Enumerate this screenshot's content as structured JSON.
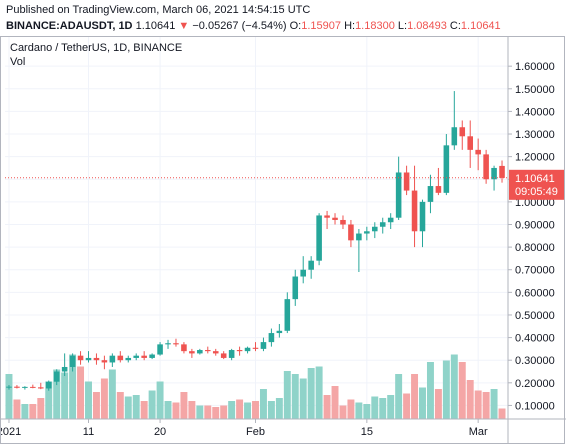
{
  "header": {
    "published": "Published on TradingView.com, March 06, 2021 14:54:15 UTC",
    "symbol": "BINANCE:ADAUSDT, 1D",
    "last": "1.10641",
    "change_arrow": "▼",
    "change": "−0.05267 (−4.54%)",
    "o_label": "O:",
    "o_value": "1.15907",
    "h_label": "H:",
    "h_value": "1.18300",
    "l_label": "L:",
    "l_value": "1.08493",
    "c_label": "C:",
    "c_value": "1.10641"
  },
  "legend": {
    "series": "Cardano / TetherUS, 1D, BINANCE",
    "volume": "Vol"
  },
  "colors": {
    "up": "#26a69a",
    "down": "#ef5350",
    "vol_up": "#8fd3c9",
    "vol_down": "#f4a6a6",
    "grid": "#f0f3fa",
    "axis_text": "#131722",
    "price_line": "#ef5350"
  },
  "price_label": {
    "value": "1.10641",
    "countdown": "09:05:49"
  },
  "chart_data": {
    "type": "candlestick",
    "y_ticks": [
      "1.60000",
      "1.50000",
      "1.40000",
      "1.30000",
      "1.20000",
      "1.10000",
      "1.00000",
      "0.90000",
      "0.80000",
      "0.70000",
      "0.60000",
      "0.50000",
      "0.40000",
      "0.30000",
      "0.20000",
      "0.10000"
    ],
    "ylim": [
      0.04,
      1.645
    ],
    "x_ticks": [
      {
        "label": "2021",
        "index": 0
      },
      {
        "label": "11",
        "index": 10
      },
      {
        "label": "20",
        "index": 19
      },
      {
        "label": "Feb",
        "index": 31
      },
      {
        "label": "15",
        "index": 45
      },
      {
        "label": "Mar",
        "index": 59
      }
    ],
    "last_price": 1.10641,
    "candles": [
      [
        0.181,
        0.19,
        0.17,
        0.183,
        0.3
      ],
      [
        0.183,
        0.19,
        0.175,
        0.178,
        0.13
      ],
      [
        0.178,
        0.185,
        0.17,
        0.182,
        0.1
      ],
      [
        0.182,
        0.192,
        0.176,
        0.18,
        0.1
      ],
      [
        0.18,
        0.2,
        0.172,
        0.175,
        0.14
      ],
      [
        0.175,
        0.21,
        0.165,
        0.205,
        0.25
      ],
      [
        0.205,
        0.26,
        0.19,
        0.25,
        0.33
      ],
      [
        0.25,
        0.33,
        0.23,
        0.27,
        0.31
      ],
      [
        0.27,
        0.33,
        0.25,
        0.32,
        0.43
      ],
      [
        0.32,
        0.34,
        0.28,
        0.3,
        0.35
      ],
      [
        0.3,
        0.34,
        0.29,
        0.31,
        0.25
      ],
      [
        0.31,
        0.33,
        0.28,
        0.3,
        0.18
      ],
      [
        0.3,
        0.32,
        0.26,
        0.29,
        0.27
      ],
      [
        0.29,
        0.33,
        0.27,
        0.32,
        0.33
      ],
      [
        0.32,
        0.34,
        0.29,
        0.3,
        0.18
      ],
      [
        0.3,
        0.32,
        0.29,
        0.31,
        0.15
      ],
      [
        0.31,
        0.33,
        0.3,
        0.32,
        0.16
      ],
      [
        0.32,
        0.34,
        0.3,
        0.31,
        0.12
      ],
      [
        0.31,
        0.33,
        0.305,
        0.325,
        0.19
      ],
      [
        0.325,
        0.38,
        0.32,
        0.37,
        0.25
      ],
      [
        0.37,
        0.39,
        0.35,
        0.375,
        0.12
      ],
      [
        0.375,
        0.395,
        0.36,
        0.37,
        0.11
      ],
      [
        0.37,
        0.38,
        0.33,
        0.34,
        0.18
      ],
      [
        0.34,
        0.35,
        0.31,
        0.33,
        0.12
      ],
      [
        0.33,
        0.35,
        0.325,
        0.345,
        0.09
      ],
      [
        0.345,
        0.36,
        0.33,
        0.34,
        0.09
      ],
      [
        0.34,
        0.35,
        0.32,
        0.33,
        0.08
      ],
      [
        0.33,
        0.34,
        0.305,
        0.31,
        0.09
      ],
      [
        0.31,
        0.35,
        0.3,
        0.345,
        0.12
      ],
      [
        0.345,
        0.36,
        0.32,
        0.34,
        0.13
      ],
      [
        0.34,
        0.36,
        0.33,
        0.355,
        0.11
      ],
      [
        0.355,
        0.38,
        0.34,
        0.35,
        0.12
      ],
      [
        0.35,
        0.4,
        0.34,
        0.38,
        0.2
      ],
      [
        0.38,
        0.44,
        0.36,
        0.42,
        0.12
      ],
      [
        0.42,
        0.46,
        0.4,
        0.43,
        0.14
      ],
      [
        0.43,
        0.6,
        0.42,
        0.57,
        0.32
      ],
      [
        0.57,
        0.7,
        0.54,
        0.67,
        0.3
      ],
      [
        0.67,
        0.76,
        0.64,
        0.7,
        0.27
      ],
      [
        0.7,
        0.76,
        0.66,
        0.74,
        0.34
      ],
      [
        0.74,
        0.95,
        0.72,
        0.94,
        0.35
      ],
      [
        0.94,
        0.96,
        0.88,
        0.93,
        0.16
      ],
      [
        0.93,
        0.95,
        0.9,
        0.92,
        0.22
      ],
      [
        0.92,
        0.94,
        0.88,
        0.9,
        0.09
      ],
      [
        0.9,
        0.92,
        0.8,
        0.83,
        0.13
      ],
      [
        0.83,
        0.88,
        0.69,
        0.86,
        0.11
      ],
      [
        0.86,
        0.89,
        0.83,
        0.87,
        0.1
      ],
      [
        0.87,
        0.91,
        0.84,
        0.89,
        0.15
      ],
      [
        0.89,
        0.93,
        0.86,
        0.91,
        0.14
      ],
      [
        0.91,
        0.95,
        0.88,
        0.93,
        0.16
      ],
      [
        0.93,
        1.2,
        0.92,
        1.13,
        0.3
      ],
      [
        1.13,
        1.16,
        1.03,
        1.05,
        0.17
      ],
      [
        1.05,
        1.16,
        0.8,
        0.87,
        0.3
      ],
      [
        0.87,
        1.01,
        0.8,
        1.0,
        0.21
      ],
      [
        1.0,
        1.12,
        0.95,
        1.07,
        0.38
      ],
      [
        1.07,
        1.15,
        1.03,
        1.04,
        0.2
      ],
      [
        1.04,
        1.3,
        1.03,
        1.25,
        0.39
      ],
      [
        1.25,
        1.49,
        1.23,
        1.33,
        0.43
      ],
      [
        1.33,
        1.36,
        1.23,
        1.29,
        0.38
      ],
      [
        1.29,
        1.36,
        1.15,
        1.23,
        0.26
      ],
      [
        1.23,
        1.28,
        1.14,
        1.21,
        0.19
      ],
      [
        1.21,
        1.23,
        1.08,
        1.1,
        0.18
      ],
      [
        1.1,
        1.16,
        1.05,
        1.15,
        0.2
      ],
      [
        1.159,
        1.183,
        1.085,
        1.106,
        0.07
      ]
    ]
  }
}
